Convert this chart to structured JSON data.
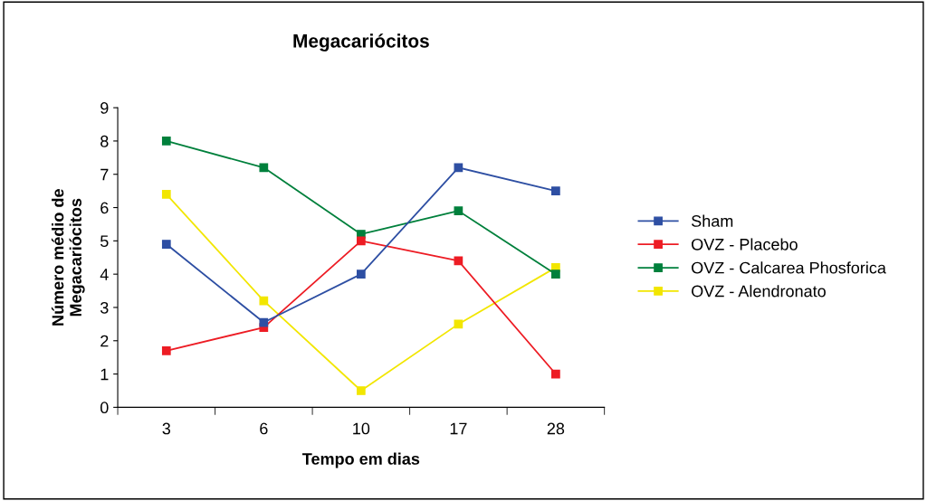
{
  "chart_data": {
    "type": "line",
    "title": "Megacariócitos",
    "xlabel": "Tempo em dias",
    "ylabel": "Número médio de\nMegacariócitos",
    "categories": [
      "3",
      "6",
      "10",
      "17",
      "28"
    ],
    "series": [
      {
        "name": "Sham",
        "color": "#2e4fa3",
        "values": [
          4.9,
          2.55,
          4.0,
          7.2,
          6.5
        ]
      },
      {
        "name": "OVZ - Placebo",
        "color": "#ed1c24",
        "values": [
          1.7,
          2.4,
          5.0,
          4.4,
          1.0
        ]
      },
      {
        "name": "OVZ - Calcarea Phosforica",
        "color": "#00803c",
        "values": [
          8.0,
          7.2,
          5.2,
          5.9,
          4.0
        ]
      },
      {
        "name": "OVZ - Alendronato",
        "color": "#f2e600",
        "values": [
          6.4,
          3.2,
          0.5,
          2.5,
          4.2
        ]
      }
    ],
    "ylim": [
      0,
      9
    ],
    "yticks": [
      0,
      1,
      2,
      3,
      4,
      5,
      6,
      7,
      8,
      9
    ],
    "grid": false,
    "legend": "right",
    "marker": "square",
    "line_style": "solid"
  }
}
